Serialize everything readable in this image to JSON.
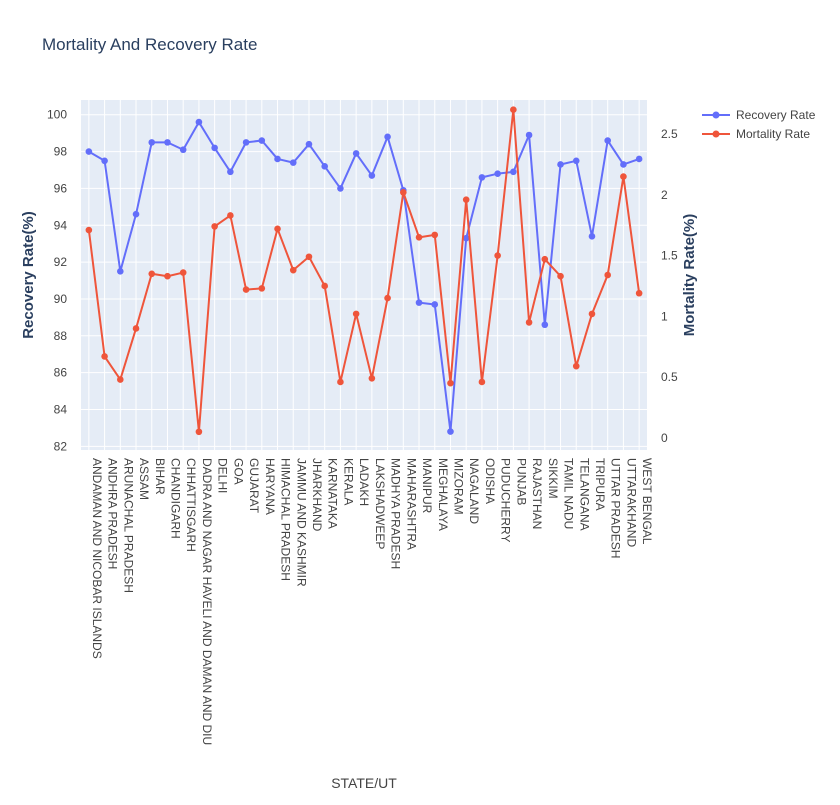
{
  "chart_data": {
    "type": "line",
    "title": "Mortality And Recovery Rate",
    "xlabel": "STATE/UT",
    "ylabel": "Recovery Rate(%)",
    "y2label": "Mortality Rate(%)",
    "ylim": [
      81.8,
      100.8
    ],
    "y2lim": [
      -0.1,
      2.78
    ],
    "yticks": [
      82,
      84,
      86,
      88,
      90,
      92,
      94,
      96,
      98,
      100
    ],
    "y2ticks": [
      0,
      0.5,
      1,
      1.5,
      2,
      2.5
    ],
    "y2tick_labels": [
      "0",
      "0.5",
      "1",
      "1.5",
      "2",
      "2.5"
    ],
    "grid": true,
    "legend_position": "top-right",
    "categories": [
      "ANDAMAN AND NICOBAR ISLANDS",
      "ANDHRA PRADESH",
      "ARUNACHAL PRADESH",
      "ASSAM",
      "BIHAR",
      "CHANDIGARH",
      "CHHATTISGARH",
      "DADRA AND NAGAR HAVELI AND DAMAN AND DIU",
      "DELHI",
      "GOA",
      "GUJARAT",
      "HARYANA",
      "HIMACHAL PRADESH",
      "JAMMU AND KASHMIR",
      "JHARKHAND",
      "KARNATAKA",
      "KERALA",
      "LADAKH",
      "LAKSHADWEEP",
      "MADHYA PRADESH",
      "MAHARASHTRA",
      "MANIPUR",
      "MEGHALAYA",
      "MIZORAM",
      "NAGALAND",
      "ODISHA",
      "PUDUCHERRY",
      "PUNJAB",
      "RAJASTHAN",
      "SIKKIM",
      "TAMIL NADU",
      "TELANGANA",
      "TRIPURA",
      "UTTAR PRADESH",
      "UTTARAKHAND",
      "WEST BENGAL"
    ],
    "series": [
      {
        "name": "Recovery Rate",
        "axis": "y",
        "color": "#636efa",
        "values": [
          98.0,
          97.5,
          91.5,
          94.6,
          98.5,
          98.5,
          98.1,
          99.6,
          98.2,
          96.9,
          98.5,
          98.6,
          97.6,
          97.4,
          98.4,
          97.2,
          96.0,
          97.9,
          96.7,
          98.8,
          95.9,
          89.8,
          89.7,
          82.8,
          93.3,
          96.6,
          96.8,
          96.9,
          98.9,
          88.6,
          97.3,
          97.5,
          93.4,
          98.6,
          97.3,
          97.6
        ]
      },
      {
        "name": "Mortality Rate",
        "axis": "y2",
        "color": "#ef553b",
        "values": [
          1.71,
          0.67,
          0.48,
          0.9,
          1.35,
          1.33,
          1.36,
          0.05,
          1.74,
          1.83,
          1.22,
          1.23,
          1.72,
          1.38,
          1.49,
          1.25,
          0.46,
          1.02,
          0.49,
          1.15,
          2.02,
          1.65,
          1.67,
          0.45,
          1.96,
          0.46,
          1.5,
          2.7,
          0.95,
          1.47,
          1.33,
          0.59,
          1.02,
          1.34,
          2.15,
          1.19
        ]
      }
    ]
  }
}
